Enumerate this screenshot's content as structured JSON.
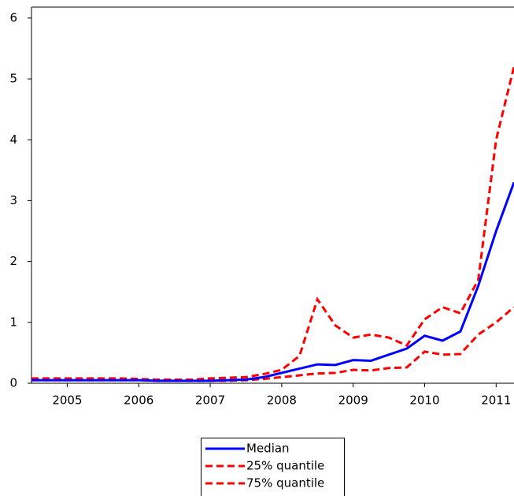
{
  "chart_data": {
    "type": "line",
    "x": [
      2005,
      2005.25,
      2005.5,
      2005.75,
      2006,
      2006.25,
      2006.5,
      2006.75,
      2007,
      2007.25,
      2007.5,
      2007.75,
      2008,
      2008.25,
      2008.5,
      2008.75,
      2009,
      2009.25,
      2009.5,
      2009.75,
      2010,
      2010.25,
      2010.5,
      2010.75,
      2011,
      2011.25,
      2011.5,
      2011.75
    ],
    "xlim": [
      2005,
      2011.75
    ],
    "xticks": [
      {
        "value": 2005.5,
        "label": "2005"
      },
      {
        "value": 2006.5,
        "label": "2006"
      },
      {
        "value": 2007.5,
        "label": "2007"
      },
      {
        "value": 2008.5,
        "label": "2008"
      },
      {
        "value": 2009.5,
        "label": "2009"
      },
      {
        "value": 2010.5,
        "label": "2010"
      },
      {
        "value": 2011.5,
        "label": "2011"
      }
    ],
    "ylim": [
      0,
      6.18
    ],
    "yticks": [
      0,
      1,
      2,
      3,
      4,
      5,
      6
    ],
    "legend": "bottom",
    "series": [
      {
        "name": "Median",
        "color": "#0000ff",
        "style": "solid",
        "values": [
          0.05,
          0.05,
          0.05,
          0.05,
          0.05,
          0.05,
          0.05,
          0.04,
          0.04,
          0.04,
          0.04,
          0.05,
          0.06,
          0.1,
          0.17,
          0.24,
          0.31,
          0.3,
          0.38,
          0.37,
          0.47,
          0.57,
          0.78,
          0.7,
          0.85,
          1.6,
          2.5,
          3.3
        ]
      },
      {
        "name": "25% quantile",
        "color": "#ff0000",
        "style": "dashed",
        "values": [
          0.05,
          0.05,
          0.05,
          0.05,
          0.05,
          0.05,
          0.05,
          0.04,
          0.04,
          0.04,
          0.04,
          0.04,
          0.05,
          0.07,
          0.1,
          0.13,
          0.16,
          0.17,
          0.22,
          0.21,
          0.25,
          0.26,
          0.52,
          0.47,
          0.48,
          0.8,
          1.0,
          1.25
        ]
      },
      {
        "name": "75% quantile",
        "color": "#ff0000",
        "style": "dashed",
        "values": [
          0.08,
          0.08,
          0.08,
          0.08,
          0.08,
          0.08,
          0.07,
          0.06,
          0.06,
          0.06,
          0.08,
          0.09,
          0.1,
          0.15,
          0.22,
          0.45,
          1.38,
          0.95,
          0.75,
          0.8,
          0.75,
          0.62,
          1.05,
          1.25,
          1.15,
          1.7,
          4.0,
          5.2
        ]
      }
    ]
  }
}
